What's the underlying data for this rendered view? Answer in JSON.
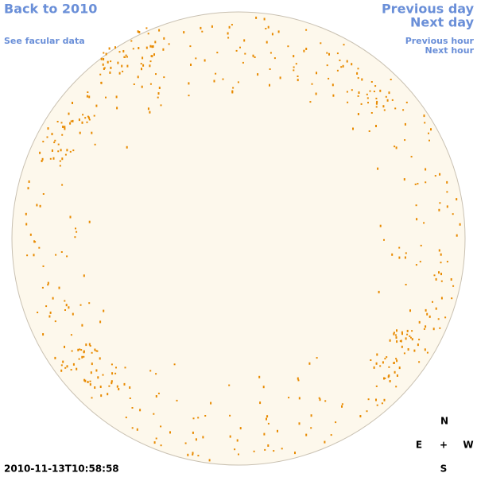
{
  "nav": {
    "back": "Back to 2010",
    "facular_data": "See facular data",
    "previous_day": "Previous day",
    "next_day": "Next day",
    "previous_hour": "Previous hour",
    "next_hour": "Next hour"
  },
  "timestamp": "2010-11-13T10:58:58",
  "compass": {
    "north": "N",
    "east": "E",
    "center": "+",
    "west": "W",
    "south": "S"
  }
}
